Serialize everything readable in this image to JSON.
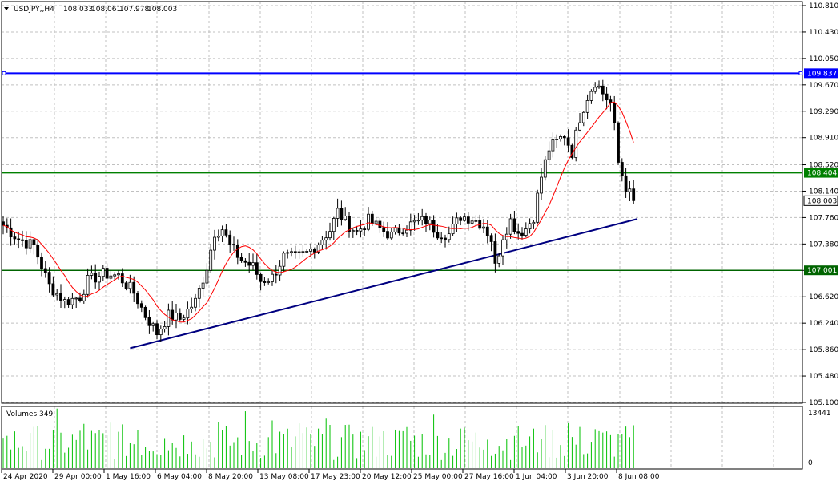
{
  "chart_data": {
    "type": "candlestick",
    "symbol": "USDJPY,,H4",
    "ohlc": {
      "open": "108.033",
      "high": "108.061",
      "low": "107.978",
      "close": "108.003"
    },
    "ylim": [
      105.1,
      110.81
    ],
    "y_ticks": [
      "110.810",
      "110.430",
      "110.050",
      "109.670",
      "109.290",
      "108.910",
      "108.520",
      "108.140",
      "107.760",
      "107.380",
      "107.000",
      "106.620",
      "106.240",
      "105.860",
      "105.480",
      "105.100"
    ],
    "x_ticks": [
      "24 Apr 2020",
      "29 Apr 00:00",
      "1 May 16:00",
      "6 May 04:00",
      "8 May 20:00",
      "13 May 08:00",
      "17 May 23:00",
      "20 May 12:00",
      "25 May 00:00",
      "27 May 16:00",
      "1 Jun 04:00",
      "3 Jun 20:00",
      "8 Jun 08:00"
    ],
    "levels": [
      {
        "price": 109.837,
        "label": "109.837",
        "color": "#0000ff"
      },
      {
        "price": 108.404,
        "label": "108.404",
        "color": "#008000"
      },
      {
        "price": 107.001,
        "label": "107.001",
        "color": "#006400"
      }
    ],
    "current_price": {
      "value": 108.003,
      "label": "108.003"
    },
    "trendline": {
      "color": "#000080",
      "from": {
        "bar": 0.2,
        "price": 105.88
      },
      "to": {
        "bar": 1.0,
        "price": 107.74
      }
    },
    "moving_average": {
      "color": "#ff0000"
    },
    "volumes": {
      "label": "Volumes 349",
      "scale_max": "13441",
      "scale_min": "0",
      "color": "#00c000"
    },
    "grid": true,
    "anchors": [
      {
        "i": 0,
        "p": 107.65
      },
      {
        "i": 4,
        "p": 107.45
      },
      {
        "i": 8,
        "p": 107.35
      },
      {
        "i": 12,
        "p": 106.78
      },
      {
        "i": 16,
        "p": 106.55
      },
      {
        "i": 20,
        "p": 106.62
      },
      {
        "i": 22,
        "p": 106.85
      },
      {
        "i": 26,
        "p": 106.95
      },
      {
        "i": 30,
        "p": 106.92
      },
      {
        "i": 34,
        "p": 106.68
      },
      {
        "i": 37,
        "p": 106.35
      },
      {
        "i": 40,
        "p": 106.1
      },
      {
        "i": 43,
        "p": 106.35
      },
      {
        "i": 46,
        "p": 106.3
      },
      {
        "i": 50,
        "p": 106.55
      },
      {
        "i": 53,
        "p": 107.05
      },
      {
        "i": 55,
        "p": 107.55
      },
      {
        "i": 57,
        "p": 107.6
      },
      {
        "i": 59,
        "p": 107.35
      },
      {
        "i": 62,
        "p": 107.15
      },
      {
        "i": 65,
        "p": 107.05
      },
      {
        "i": 67,
        "p": 106.85
      },
      {
        "i": 70,
        "p": 106.9
      },
      {
        "i": 73,
        "p": 107.2
      },
      {
        "i": 76,
        "p": 107.18
      },
      {
        "i": 79,
        "p": 107.25
      },
      {
        "i": 82,
        "p": 107.4
      },
      {
        "i": 85,
        "p": 107.58
      },
      {
        "i": 87,
        "p": 107.85
      },
      {
        "i": 89,
        "p": 107.7
      },
      {
        "i": 92,
        "p": 107.55
      },
      {
        "i": 95,
        "p": 107.72
      },
      {
        "i": 98,
        "p": 107.6
      },
      {
        "i": 101,
        "p": 107.5
      },
      {
        "i": 104,
        "p": 107.62
      },
      {
        "i": 107,
        "p": 107.68
      },
      {
        "i": 110,
        "p": 107.72
      },
      {
        "i": 113,
        "p": 107.55
      },
      {
        "i": 116,
        "p": 107.52
      },
      {
        "i": 119,
        "p": 107.78
      },
      {
        "i": 122,
        "p": 107.75
      },
      {
        "i": 125,
        "p": 107.65
      },
      {
        "i": 127,
        "p": 107.45
      },
      {
        "i": 128,
        "p": 107.05
      },
      {
        "i": 130,
        "p": 107.5
      },
      {
        "i": 132,
        "p": 107.72
      },
      {
        "i": 134,
        "p": 107.55
      },
      {
        "i": 136,
        "p": 107.6
      },
      {
        "i": 138,
        "p": 107.78
      },
      {
        "i": 140,
        "p": 108.35
      },
      {
        "i": 142,
        "p": 108.75
      },
      {
        "i": 144,
        "p": 108.85
      },
      {
        "i": 146,
        "p": 108.95
      },
      {
        "i": 148,
        "p": 108.7
      },
      {
        "i": 150,
        "p": 109.2
      },
      {
        "i": 152,
        "p": 109.5
      },
      {
        "i": 154,
        "p": 109.72
      },
      {
        "i": 156,
        "p": 109.55
      },
      {
        "i": 158,
        "p": 109.4
      },
      {
        "i": 159,
        "p": 109.05
      },
      {
        "i": 160,
        "p": 108.55
      },
      {
        "i": 162,
        "p": 108.2
      },
      {
        "i": 164,
        "p": 108.0
      }
    ]
  }
}
